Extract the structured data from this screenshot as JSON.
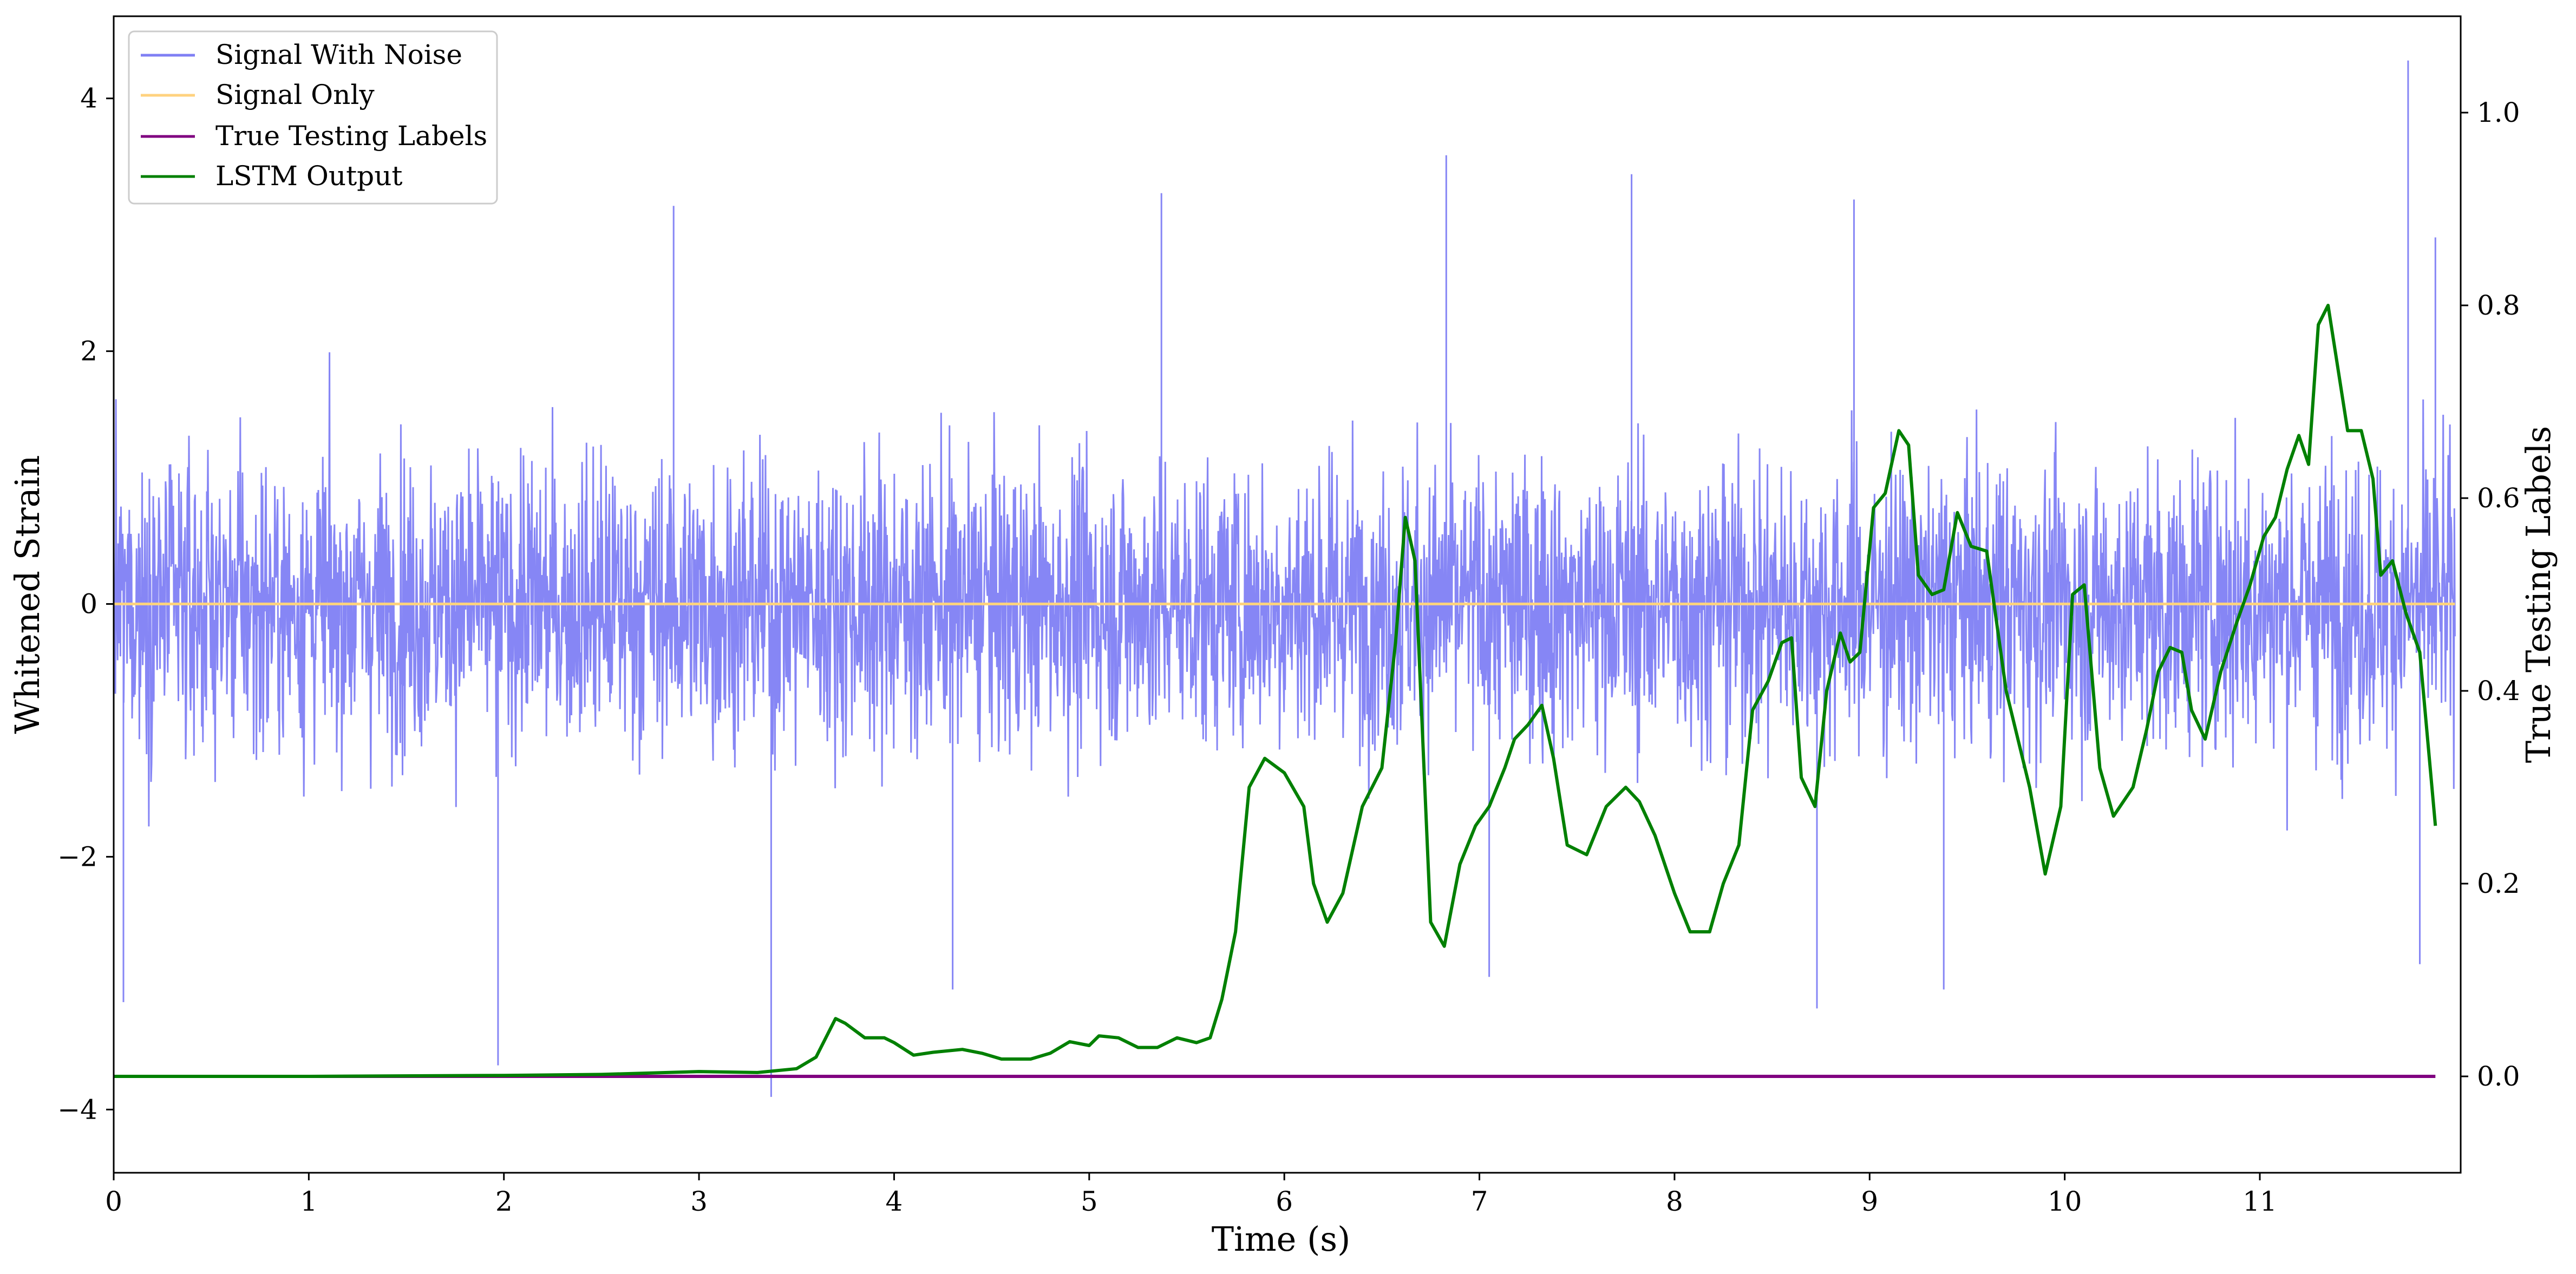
{
  "chart_data": {
    "type": "line",
    "xlabel": "Time (s)",
    "ylabel": "Whitened Strain",
    "y2label": "True Testing Labels",
    "xlim": [
      0,
      12.0
    ],
    "ylim": [
      -4.5,
      4.65
    ],
    "y2lim": [
      -0.1,
      1.1
    ],
    "xticks": [
      0,
      1,
      2,
      3,
      4,
      5,
      6,
      7,
      8,
      9,
      10,
      11
    ],
    "yticks": [
      -4,
      -2,
      0,
      2,
      4
    ],
    "y2ticks": [
      0.0,
      0.2,
      0.4,
      0.6,
      0.8,
      1.0
    ],
    "xtick_labels": [
      "0",
      "1",
      "2",
      "3",
      "4",
      "5",
      "6",
      "7",
      "8",
      "9",
      "10",
      "11"
    ],
    "ytick_labels": [
      "−4",
      "−2",
      "0",
      "2",
      "4"
    ],
    "y2tick_labels": [
      "0.0",
      "0.2",
      "0.4",
      "0.6",
      "0.8",
      "1.0"
    ],
    "legend_position": "top-left",
    "grid": false,
    "series": [
      {
        "name": "Signal With Noise",
        "axis": "left",
        "color": "#8080F4",
        "description_of_values": "dense noise band",
        "band_typical_range": [
          -1.8,
          1.8
        ],
        "max_spike": 4.3,
        "min_spike": -3.9,
        "spikes": [
          {
            "x": 0.05,
            "y": -3.15
          },
          {
            "x": 1.97,
            "y": -3.65
          },
          {
            "x": 3.37,
            "y": -3.9
          },
          {
            "x": 2.87,
            "y": 3.15
          },
          {
            "x": 5.37,
            "y": 3.25
          },
          {
            "x": 6.83,
            "y": 3.55
          },
          {
            "x": 7.78,
            "y": 3.4
          },
          {
            "x": 11.76,
            "y": 4.3
          },
          {
            "x": 9.38,
            "y": -3.05
          },
          {
            "x": 8.73,
            "y": -3.2
          },
          {
            "x": 7.05,
            "y": -2.95
          },
          {
            "x": 4.3,
            "y": -3.05
          },
          {
            "x": 11.82,
            "y": -2.85
          },
          {
            "x": 11.9,
            "y": 2.9
          },
          {
            "x": 8.92,
            "y": 3.2
          }
        ]
      },
      {
        "name": "Signal Only",
        "axis": "left",
        "color": "#FFD27F",
        "x": [
          0,
          12.0
        ],
        "values": [
          0,
          0
        ]
      },
      {
        "name": "True Testing Labels",
        "axis": "right",
        "color": "#800080",
        "x": [
          0,
          11.9
        ],
        "values": [
          0.0,
          0.0
        ]
      },
      {
        "name": "LSTM Output",
        "axis": "right",
        "color": "#008000",
        "x": [
          0,
          1,
          2,
          2.5,
          3.0,
          3.3,
          3.5,
          3.6,
          3.7,
          3.75,
          3.85,
          3.95,
          4.0,
          4.1,
          4.2,
          4.35,
          4.45,
          4.55,
          4.7,
          4.8,
          4.9,
          5.0,
          5.05,
          5.15,
          5.25,
          5.35,
          5.45,
          5.55,
          5.62,
          5.68,
          5.75,
          5.82,
          5.9,
          6.0,
          6.1,
          6.15,
          6.22,
          6.3,
          6.4,
          6.5,
          6.57,
          6.62,
          6.67,
          6.75,
          6.82,
          6.9,
          6.98,
          7.05,
          7.13,
          7.18,
          7.25,
          7.32,
          7.38,
          7.45,
          7.55,
          7.65,
          7.75,
          7.82,
          7.9,
          8.0,
          8.08,
          8.18,
          8.25,
          8.33,
          8.4,
          8.48,
          8.55,
          8.6,
          8.65,
          8.72,
          8.78,
          8.85,
          8.9,
          8.95,
          9.02,
          9.08,
          9.15,
          9.2,
          9.25,
          9.32,
          9.38,
          9.45,
          9.52,
          9.6,
          9.7,
          9.82,
          9.9,
          9.98,
          10.04,
          10.1,
          10.18,
          10.25,
          10.35,
          10.42,
          10.48,
          10.54,
          10.6,
          10.65,
          10.72,
          10.8,
          10.88,
          10.95,
          11.02,
          11.08,
          11.14,
          11.2,
          11.25,
          11.3,
          11.35,
          11.45,
          11.52,
          11.58,
          11.62,
          11.68,
          11.75,
          11.82,
          11.9
        ],
        "values": [
          0.0,
          0.0,
          0.001,
          0.002,
          0.005,
          0.004,
          0.008,
          0.02,
          0.06,
          0.055,
          0.04,
          0.04,
          0.035,
          0.022,
          0.025,
          0.028,
          0.024,
          0.018,
          0.018,
          0.024,
          0.036,
          0.032,
          0.042,
          0.04,
          0.03,
          0.03,
          0.04,
          0.035,
          0.04,
          0.08,
          0.15,
          0.3,
          0.33,
          0.315,
          0.28,
          0.2,
          0.16,
          0.19,
          0.28,
          0.32,
          0.45,
          0.58,
          0.535,
          0.16,
          0.135,
          0.22,
          0.26,
          0.28,
          0.32,
          0.35,
          0.365,
          0.385,
          0.33,
          0.24,
          0.23,
          0.28,
          0.3,
          0.285,
          0.25,
          0.19,
          0.15,
          0.15,
          0.2,
          0.24,
          0.38,
          0.41,
          0.45,
          0.455,
          0.31,
          0.28,
          0.4,
          0.46,
          0.43,
          0.44,
          0.59,
          0.605,
          0.67,
          0.655,
          0.52,
          0.5,
          0.505,
          0.585,
          0.55,
          0.545,
          0.4,
          0.3,
          0.21,
          0.28,
          0.5,
          0.51,
          0.32,
          0.27,
          0.3,
          0.36,
          0.42,
          0.445,
          0.44,
          0.38,
          0.35,
          0.42,
          0.47,
          0.51,
          0.56,
          0.58,
          0.63,
          0.665,
          0.635,
          0.78,
          0.8,
          0.67,
          0.67,
          0.62,
          0.52,
          0.535,
          0.48,
          0.44,
          0.26
        ]
      }
    ]
  }
}
